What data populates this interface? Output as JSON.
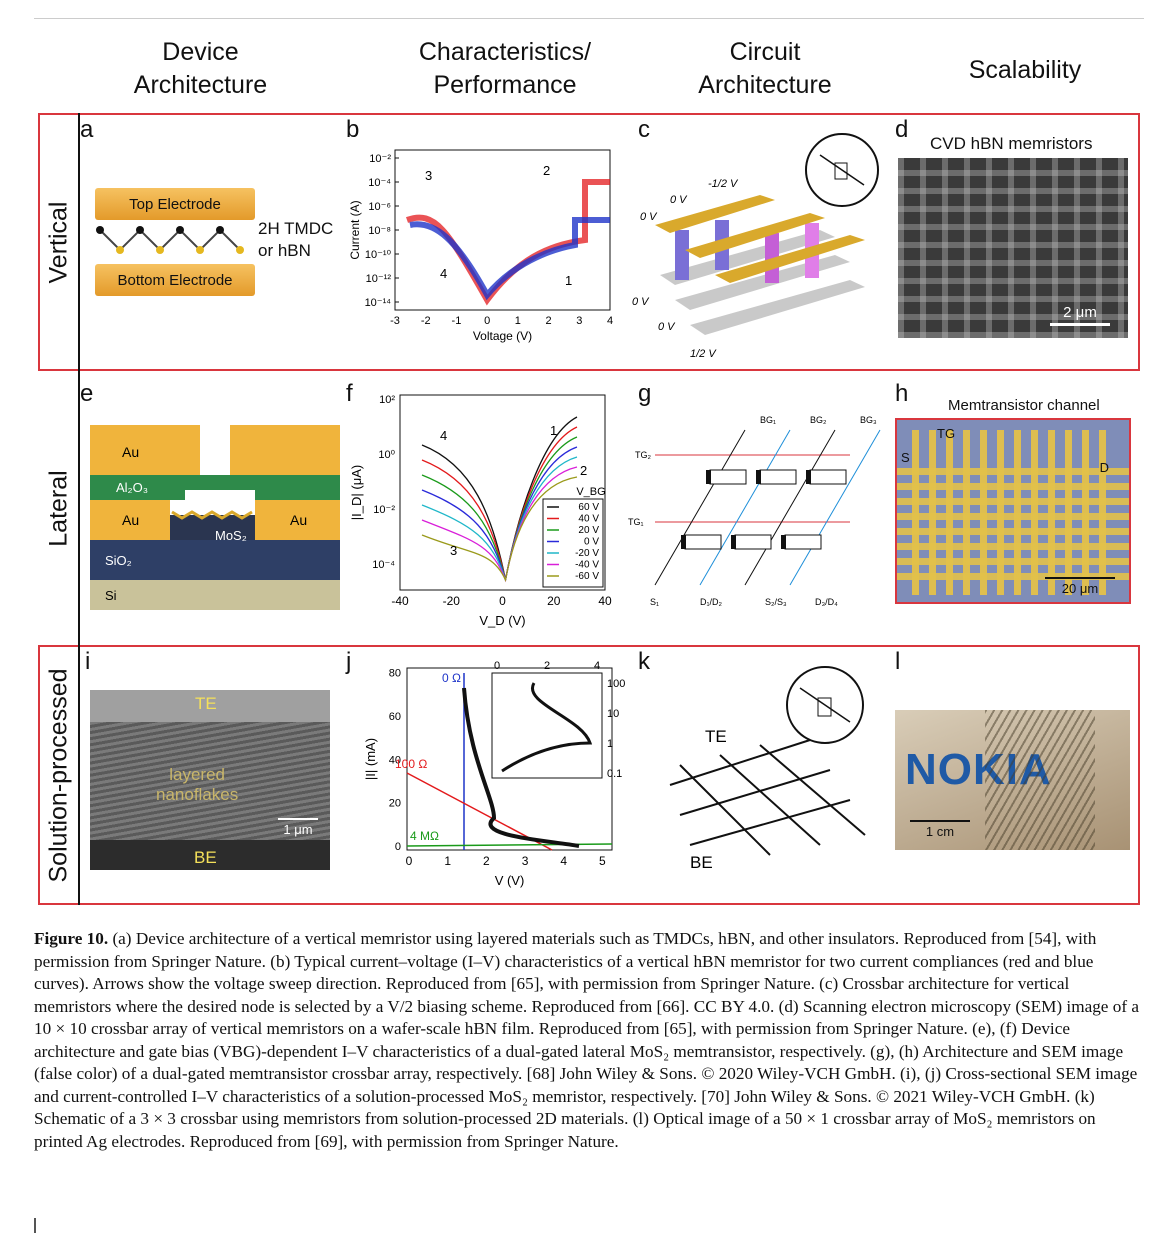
{
  "columns": [
    "Device\nArchitecture",
    "Characteristics/\nPerformance",
    "Circuit\nArchitecture",
    "Scalability"
  ],
  "rows": [
    "Vertical",
    "Lateral",
    "Solution-processed"
  ],
  "panel_letters": [
    "a",
    "b",
    "c",
    "d",
    "e",
    "f",
    "g",
    "h",
    "i",
    "j",
    "k",
    "l"
  ],
  "panel_a": {
    "top": "Top Electrode",
    "bottom": "Bottom Electrode",
    "material": "2H TMDC\nor hBN"
  },
  "panel_b": {
    "ylabel": "Current (A)",
    "xlabel": "Voltage (V)",
    "yticks": [
      "10⁻²",
      "10⁻⁴",
      "10⁻⁶",
      "10⁻⁸",
      "10⁻¹⁰",
      "10⁻¹²",
      "10⁻¹⁴"
    ],
    "xticks": [
      "-3",
      "-2",
      "-1",
      "0",
      "1",
      "2",
      "3",
      "4"
    ],
    "arrows": [
      "1",
      "2",
      "3",
      "4"
    ]
  },
  "panel_c": {
    "labels": [
      "-1/2 V",
      "0 V",
      "0 V",
      "0 V",
      "0 V",
      "1/2 V"
    ]
  },
  "panel_d": {
    "title": "CVD hBN memristors",
    "scale": "2 μm"
  },
  "panel_e": {
    "labels": [
      "Au",
      "Al₂O₃",
      "Au",
      "MoS₂",
      "Au",
      "SiO₂",
      "Si"
    ]
  },
  "panel_f": {
    "ylabel": "|I_D| (μA)",
    "xlabel": "V_D (V)",
    "yticks": [
      "10²",
      "10⁰",
      "10⁻²",
      "10⁻⁴"
    ],
    "xticks": [
      "-40",
      "-20",
      "0",
      "20",
      "40"
    ],
    "legend_title": "V_BG",
    "legend": [
      "60 V",
      "40 V",
      "20 V",
      "0 V",
      "-20 V",
      "-40 V",
      "-60 V"
    ],
    "arrows": [
      "1",
      "2",
      "3",
      "4"
    ]
  },
  "panel_g": {
    "labels": [
      "BG₁",
      "BG₂",
      "BG₃",
      "TG₂",
      "TG₁",
      "S₁",
      "D₁/D₂",
      "S₂/S₃",
      "D₃/D₄"
    ]
  },
  "panel_h": {
    "title": "Memtransistor channel",
    "labels": [
      "TG",
      "S",
      "D"
    ],
    "scale": "20 μm"
  },
  "panel_i": {
    "labels": [
      "TE",
      "layered\nnanoflakes",
      "BE"
    ],
    "scale": "1 μm"
  },
  "panel_j": {
    "ylabel": "|I| (mA)",
    "xlabel": "V (V)",
    "yticks": [
      "0",
      "20",
      "40",
      "60",
      "80"
    ],
    "xticks": [
      "0",
      "1",
      "2",
      "3",
      "4",
      "5"
    ],
    "inset_xticks": [
      "0",
      "2",
      "4"
    ],
    "inset_yticks": [
      "100",
      "10",
      "1",
      "0.1"
    ],
    "labels": [
      "0 Ω",
      "100 Ω",
      "4 MΩ"
    ]
  },
  "panel_k": {
    "labels": [
      "TE",
      "BE"
    ]
  },
  "panel_l": {
    "brand": "NOKIA",
    "scale": "1 cm"
  },
  "caption": {
    "title": "Figure 10.",
    "text": " (a) Device architecture of a vertical memristor using layered materials such as TMDCs, hBN, and other insulators. Reproduced from [54], with permission from Springer Nature. (b) Typical current–voltage (I–V) characteristics of a vertical hBN memristor for two current compliances (red and blue curves). Arrows show the voltage sweep direction. Reproduced from [65], with permission from Springer Nature. (c) Crossbar architecture for vertical memristors where the desired node is selected by a V/2 biasing scheme. Reproduced from [66]. CC BY 4.0. (d) Scanning electron microscopy (SEM) image of a 10 × 10 crossbar array of vertical memristors on a wafer-scale hBN film. Reproduced from [65], with permission from Springer Nature. (e), (f) Device architecture and gate bias (VBG)-dependent I–V characteristics of a dual-gated lateral MoS₂ memtransistor, respectively. (g), (h) Architecture and SEM image (false color) of a dual-gated memtransistor crossbar array, respectively. [68] John Wiley & Sons. © 2020 Wiley-VCH GmbH. (i), (j) Cross-sectional SEM image and current-controlled I–V characteristics of a solution-processed MoS₂ memristor, respectively. [70] John Wiley & Sons. © 2021 Wiley-VCH GmbH. (k) Schematic of a 3 × 3 crossbar using memristors from solution-processed 2D materials. (l) Optical image of a 50 × 1 crossbar array of MoS₂ memristors on printed Ag electrodes. Reproduced from [69], with permission from Springer Nature."
  }
}
